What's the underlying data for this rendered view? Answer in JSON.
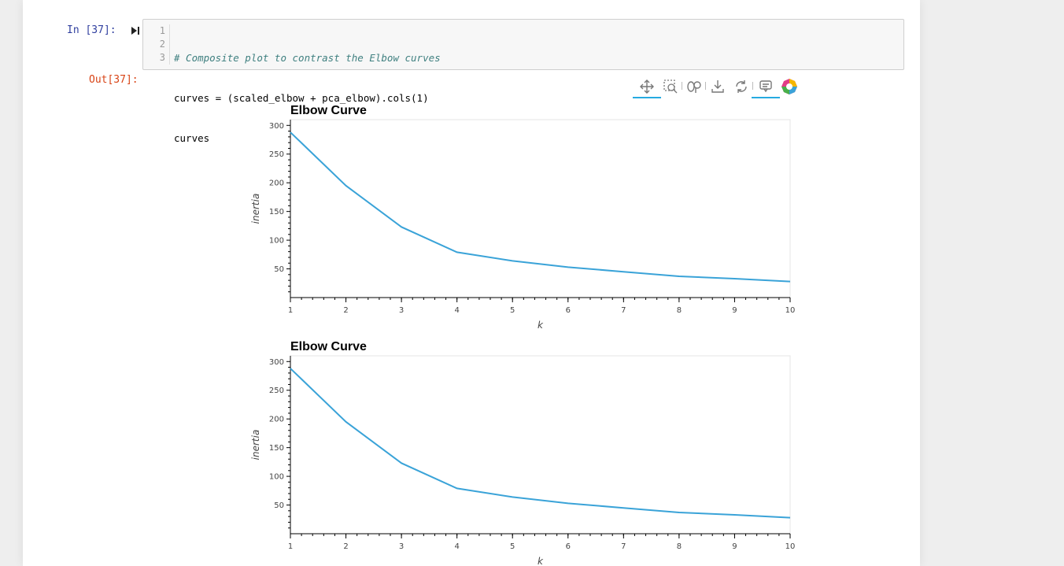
{
  "cell": {
    "in_prompt": "In [37]:",
    "out_prompt": "Out[37]:",
    "line_numbers": [
      "1",
      "2",
      "3"
    ],
    "code_lines": [
      "# Composite plot to contrast the Elbow curves",
      "curves = (scaled_elbow + pca_elbow).cols(1)",
      "curves"
    ]
  },
  "toolbar": {
    "tools": [
      "pan-icon",
      "box-zoom-icon",
      "wheel-zoom-icon",
      "save-icon",
      "reset-icon",
      "hover-icon",
      "bokeh-logo"
    ]
  },
  "colors": {
    "line": "#3aa3d8",
    "prompt_in": "#303f9f",
    "prompt_out": "#d84315"
  },
  "chart_data": [
    {
      "type": "line",
      "title": "Elbow Curve",
      "xlabel": "k",
      "ylabel": "inertia",
      "x": [
        1,
        2,
        3,
        4,
        5,
        6,
        7,
        8,
        9,
        10
      ],
      "series": [
        {
          "values": [
            288,
            195,
            123,
            79,
            64,
            53,
            45,
            37,
            33,
            28
          ]
        }
      ],
      "xlim": [
        1,
        10
      ],
      "ylim": [
        0,
        310
      ],
      "xticks": [
        "1",
        "2",
        "3",
        "4",
        "5",
        "6",
        "7",
        "8",
        "9",
        "10"
      ],
      "yticks": [
        "50",
        "100",
        "150",
        "200",
        "250",
        "300"
      ],
      "grid": false
    },
    {
      "type": "line",
      "title": "Elbow Curve",
      "xlabel": "k",
      "ylabel": "inertia",
      "x": [
        1,
        2,
        3,
        4,
        5,
        6,
        7,
        8,
        9,
        10
      ],
      "series": [
        {
          "values": [
            288,
            195,
            123,
            79,
            64,
            53,
            45,
            37,
            33,
            28
          ]
        }
      ],
      "xlim": [
        1,
        10
      ],
      "ylim": [
        0,
        310
      ],
      "xticks": [
        "1",
        "2",
        "3",
        "4",
        "5",
        "6",
        "7",
        "8",
        "9",
        "10"
      ],
      "yticks": [
        "50",
        "100",
        "150",
        "200",
        "250",
        "300"
      ],
      "grid": false
    }
  ]
}
